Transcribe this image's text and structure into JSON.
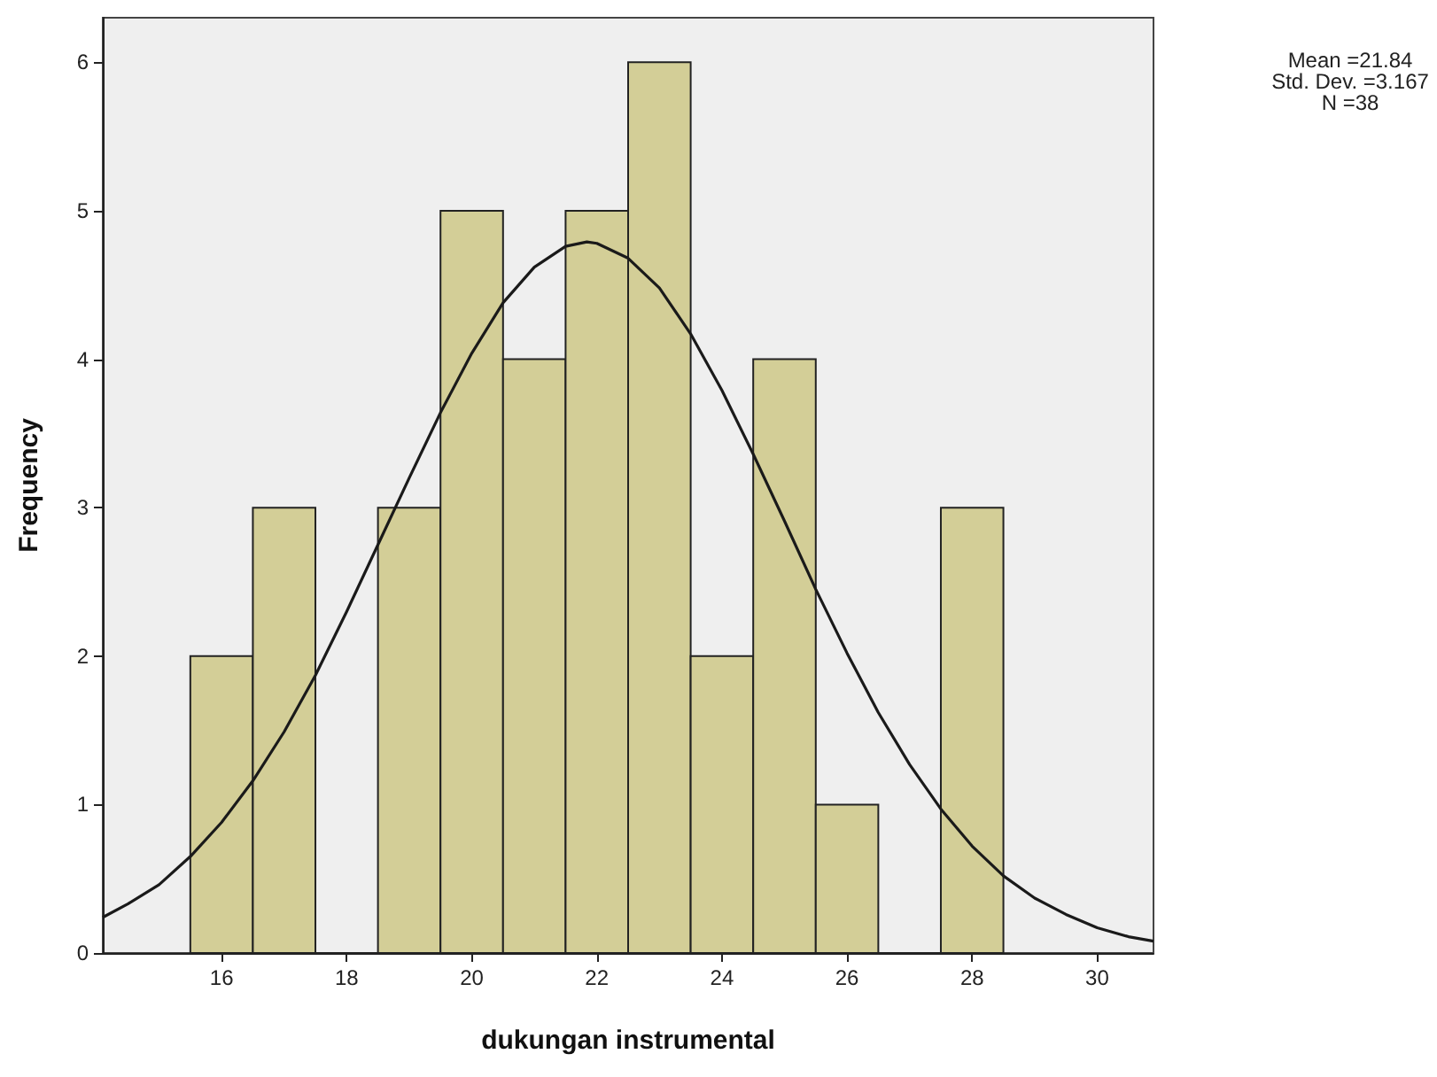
{
  "chart_data": {
    "type": "histogram",
    "xlabel": "dukungan instrumental",
    "ylabel": "Frequency",
    "annotations": [
      "Mean =21.84",
      "Std. Dev. =3.167",
      "N =38"
    ],
    "xlim": [
      14.1,
      30.9
    ],
    "xticks": [
      16,
      18,
      20,
      22,
      24,
      26,
      28,
      30
    ],
    "ylim": [
      0,
      6.3
    ],
    "yticks": [
      0,
      1,
      2,
      3,
      4,
      5,
      6
    ],
    "grid": false,
    "series": [
      {
        "color": "#d3ce97",
        "bins": [
          15.5,
          16.5,
          17.5,
          18.5,
          19.5,
          20.5,
          21.5,
          22.5,
          23.5,
          24.5,
          25.5,
          26.5,
          27.5,
          28.5
        ],
        "values": [
          2,
          3,
          0,
          3,
          5,
          4,
          5,
          6,
          2,
          4,
          1,
          0,
          3
        ]
      },
      {
        "type": "line",
        "color": "#1a1a1a",
        "x": [
          14.1,
          14.5,
          15,
          15.5,
          16,
          16.5,
          17,
          17.5,
          18,
          18.5,
          19,
          19.5,
          20,
          20.5,
          21,
          21.5,
          21.84,
          22,
          22.5,
          23,
          23.5,
          24,
          24.5,
          25,
          25.5,
          26,
          26.5,
          27,
          27.5,
          28,
          28.5,
          29,
          29.5,
          30,
          30.5,
          30.9
        ],
        "values": [
          0.24,
          0.33,
          0.46,
          0.65,
          0.88,
          1.16,
          1.49,
          1.87,
          2.3,
          2.75,
          3.2,
          3.64,
          4.04,
          4.38,
          4.62,
          4.76,
          4.79,
          4.78,
          4.68,
          4.48,
          4.17,
          3.79,
          3.36,
          2.91,
          2.45,
          2.02,
          1.62,
          1.27,
          0.97,
          0.72,
          0.52,
          0.37,
          0.26,
          0.17,
          0.11,
          0.08
        ]
      }
    ]
  }
}
